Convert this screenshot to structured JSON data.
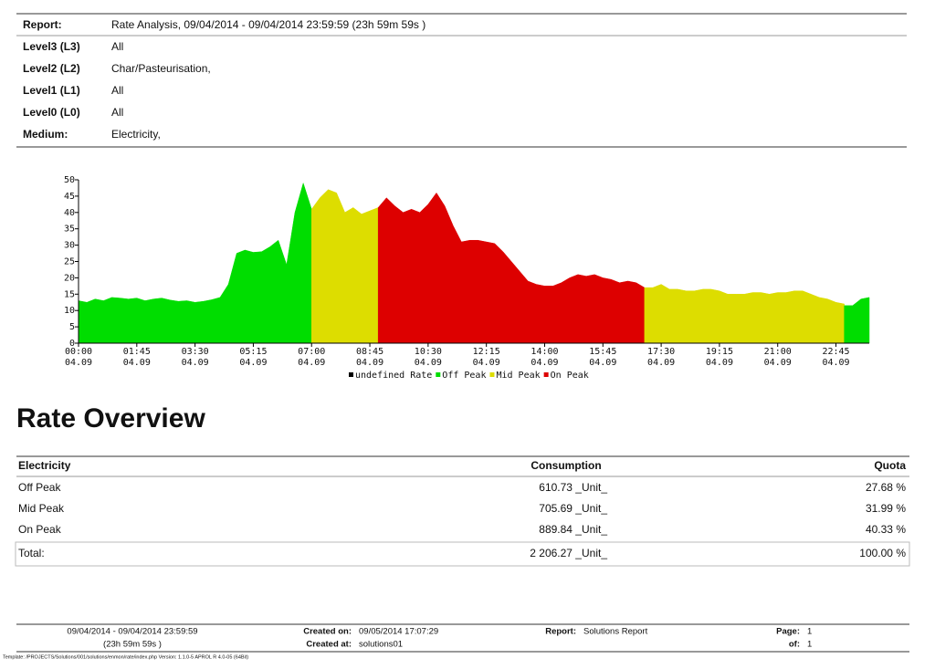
{
  "report": {
    "rows": [
      {
        "label": "Report:",
        "value": "Rate Analysis, 09/04/2014 - 09/04/2014 23:59:59 (23h 59m 59s )"
      },
      {
        "label": "Level3 (L3)",
        "value": "All"
      },
      {
        "label": "Level2 (L2)",
        "value": "Char/Pasteurisation,"
      },
      {
        "label": "Level1 (L1)",
        "value": "All"
      },
      {
        "label": "Level0 (L0)",
        "value": "All"
      },
      {
        "label": "Medium:",
        "value": "Electricity,"
      }
    ]
  },
  "chart_data": {
    "type": "area",
    "xlim": [
      0,
      1425
    ],
    "ylim": [
      0,
      50
    ],
    "yticks": [
      0,
      5,
      10,
      15,
      20,
      25,
      30,
      35,
      40,
      45,
      50
    ],
    "xticks": [
      {
        "value": 0,
        "label": "00:00",
        "date": "04.09"
      },
      {
        "value": 105,
        "label": "01:45",
        "date": "04.09"
      },
      {
        "value": 210,
        "label": "03:30",
        "date": "04.09"
      },
      {
        "value": 315,
        "label": "05:15",
        "date": "04.09"
      },
      {
        "value": 420,
        "label": "07:00",
        "date": "04.09"
      },
      {
        "value": 525,
        "label": "08:45",
        "date": "04.09"
      },
      {
        "value": 630,
        "label": "10:30",
        "date": "04.09"
      },
      {
        "value": 735,
        "label": "12:15",
        "date": "04.09"
      },
      {
        "value": 840,
        "label": "14:00",
        "date": "04.09"
      },
      {
        "value": 945,
        "label": "15:45",
        "date": "04.09"
      },
      {
        "value": 1050,
        "label": "17:30",
        "date": "04.09"
      },
      {
        "value": 1155,
        "label": "19:15",
        "date": "04.09"
      },
      {
        "value": 1260,
        "label": "21:00",
        "date": "04.09"
      },
      {
        "value": 1365,
        "label": "22:45",
        "date": "04.09"
      }
    ],
    "legend": [
      {
        "name": "undefined Rate",
        "color": "#000000"
      },
      {
        "name": "Off Peak",
        "color": "#00dd00"
      },
      {
        "name": "Mid Peak",
        "color": "#dddd00"
      },
      {
        "name": "On Peak",
        "color": "#dd0000"
      }
    ],
    "series": [
      {
        "name": "Off Peak",
        "color": "#00dd00",
        "x": [
          0,
          15,
          30,
          45,
          60,
          75,
          90,
          105,
          120,
          135,
          150,
          165,
          180,
          195,
          210,
          225,
          240,
          255,
          270,
          285,
          300,
          315,
          330,
          345,
          360,
          375,
          390,
          405,
          420
        ],
        "values": [
          13,
          12.5,
          13.5,
          13,
          14,
          13.8,
          13.5,
          13.8,
          13,
          13.5,
          13.8,
          13.2,
          12.8,
          13,
          12.5,
          12.8,
          13.3,
          14,
          18,
          27.5,
          28.5,
          27.8,
          28,
          29.5,
          31.5,
          24,
          40,
          49,
          41
        ]
      },
      {
        "name": "Mid Peak",
        "color": "#dddd00",
        "x": [
          420,
          435,
          450,
          465,
          480,
          495,
          510,
          525,
          540
        ],
        "values": [
          41,
          44.5,
          47,
          46,
          40,
          41.5,
          39.5,
          40.5,
          41.5
        ]
      },
      {
        "name": "On Peak",
        "color": "#dd0000",
        "x": [
          540,
          555,
          570,
          585,
          600,
          615,
          630,
          645,
          660,
          675,
          690,
          705,
          720,
          735,
          750,
          765,
          780,
          795,
          810,
          825,
          840,
          855,
          870,
          885,
          900,
          915,
          930,
          945,
          960,
          975,
          990,
          1005,
          1020
        ],
        "values": [
          41.5,
          44.5,
          42,
          40,
          41,
          40,
          42.5,
          46,
          42,
          36,
          31,
          31.5,
          31.5,
          31,
          30.5,
          28,
          25,
          22,
          19,
          18,
          17.5,
          17.5,
          18.5,
          20,
          21,
          20.5,
          21,
          20,
          19.5,
          18.5,
          19,
          18.5,
          17
        ]
      },
      {
        "name": "Mid Peak",
        "color": "#dddd00",
        "x": [
          1020,
          1035,
          1050,
          1065,
          1080,
          1095,
          1110,
          1125,
          1140,
          1155,
          1170,
          1185,
          1200,
          1215,
          1230,
          1245,
          1260,
          1275,
          1290,
          1305,
          1320,
          1335,
          1350,
          1365,
          1380
        ],
        "values": [
          17,
          17,
          18,
          16.5,
          16.5,
          16,
          16,
          16.5,
          16.5,
          16,
          15,
          15,
          15,
          15.5,
          15.5,
          15,
          15.5,
          15.5,
          16,
          16,
          15,
          14,
          13.5,
          12.5,
          12
        ]
      },
      {
        "name": "Off Peak",
        "color": "#00dd00",
        "x": [
          1380,
          1395,
          1410,
          1425
        ],
        "values": [
          11.5,
          11.5,
          13.5,
          14
        ]
      }
    ]
  },
  "overview": {
    "title": "Rate Overview",
    "columns": [
      "Electricity",
      "Consumption",
      "Quota"
    ],
    "rows": [
      [
        "Off Peak",
        "610.73 _Unit_",
        "27.68 %"
      ],
      [
        "Mid Peak",
        "705.69 _Unit_",
        "31.99 %"
      ],
      [
        "On Peak",
        "889.84 _Unit_",
        "40.33 %"
      ]
    ],
    "total": [
      "Total:",
      "2 206.27 _Unit_",
      "100.00 %"
    ]
  },
  "footer": {
    "period": "09/04/2014 - 09/04/2014 23:59:59",
    "duration": "(23h 59m 59s )",
    "created_on_label": "Created on:",
    "created_on": "09/05/2014 17:07:29",
    "created_at_label": "Created at:",
    "created_at": "solutions01",
    "report_label": "Report:",
    "report": "Solutions Report",
    "page_label": "Page:",
    "page": "1",
    "of_label": "of:",
    "of": "1",
    "template": "Template: /PROJECTS/Solutions/001/solutions/enmon/rate/index.php Version: 1.1.0-5 APROL R 4.0-05 (64Bit)"
  }
}
